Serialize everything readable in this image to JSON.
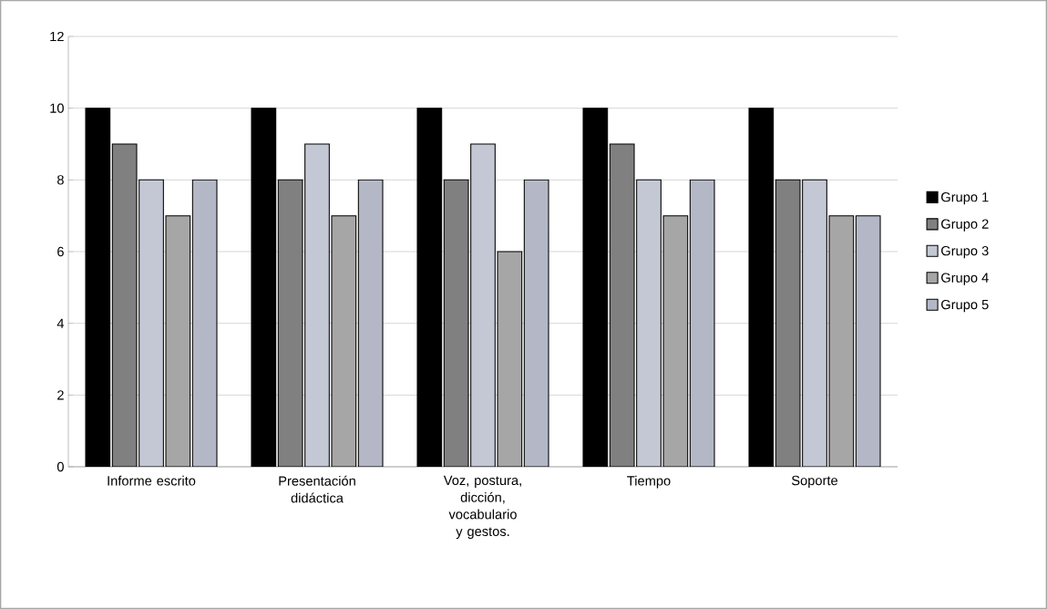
{
  "chart_data": {
    "type": "bar",
    "categories": [
      "Informe escrito",
      "Presentación didáctica",
      "Voz, postura, dicción, vocabulario y gestos.",
      "Tiempo",
      "Soporte"
    ],
    "series": [
      {
        "name": "Grupo 1",
        "color": "#000000",
        "values": [
          10,
          10,
          10,
          10,
          10
        ]
      },
      {
        "name": "Grupo 2",
        "color": "#808080",
        "values": [
          9,
          8,
          8,
          9,
          8
        ]
      },
      {
        "name": "Grupo 3",
        "color": "#c4c8d4",
        "values": [
          8,
          9,
          9,
          8,
          8
        ]
      },
      {
        "name": "Grupo 4",
        "color": "#a6a6a6",
        "values": [
          7,
          7,
          6,
          7,
          7
        ]
      },
      {
        "name": "Grupo 5",
        "color": "#b4b8c6",
        "values": [
          8,
          8,
          8,
          8,
          7
        ]
      }
    ],
    "ylim": [
      0,
      12
    ],
    "yticks": [
      0,
      2,
      4,
      6,
      8,
      10,
      12
    ],
    "grid": "y",
    "legend": "right"
  }
}
